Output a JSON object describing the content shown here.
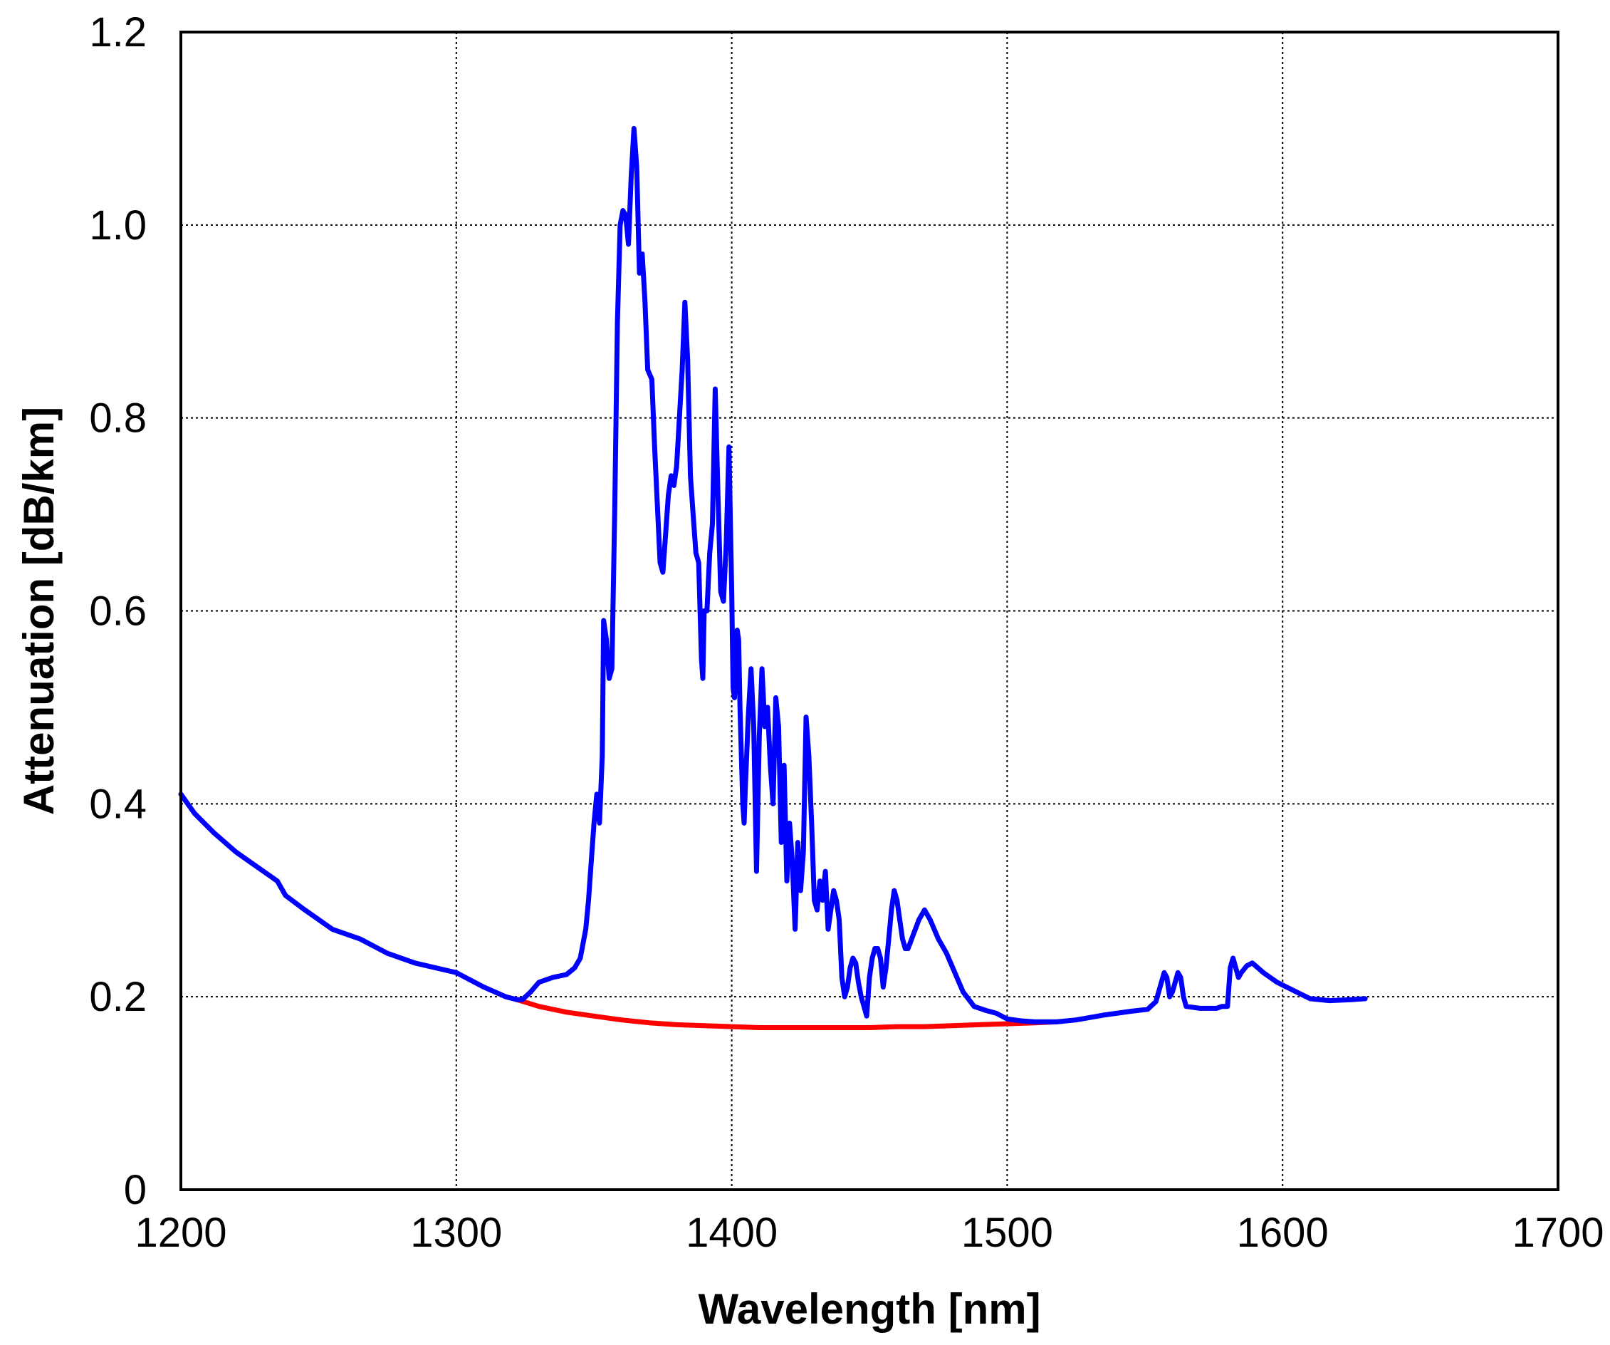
{
  "chart_data": {
    "type": "line",
    "xlabel": "Wavelength [nm]",
    "ylabel": "Attenuation [dB/km]",
    "xlim": [
      1200,
      1700
    ],
    "ylim": [
      0,
      1.2
    ],
    "x_ticks": [
      "1200",
      "1300",
      "1400",
      "1500",
      "1600",
      "1700"
    ],
    "y_ticks": [
      "0",
      "0.2",
      "0.4",
      "0.6",
      "0.8",
      "1.0",
      "1.2"
    ],
    "x_tick_values": [
      1200,
      1300,
      1400,
      1500,
      1600,
      1700
    ],
    "y_tick_values": [
      0,
      0.2,
      0.4,
      0.6,
      0.8,
      1.0,
      1.2
    ],
    "grid": true,
    "grid_style": "dotted",
    "series": [
      {
        "color": "#0000ff",
        "points": [
          [
            1200,
            0.41
          ],
          [
            1205,
            0.39
          ],
          [
            1212,
            0.37
          ],
          [
            1220,
            0.35
          ],
          [
            1230,
            0.33
          ],
          [
            1235,
            0.32
          ],
          [
            1238,
            0.305
          ],
          [
            1245,
            0.29
          ],
          [
            1255,
            0.27
          ],
          [
            1265,
            0.26
          ],
          [
            1275,
            0.245
          ],
          [
            1285,
            0.235
          ],
          [
            1300,
            0.225
          ],
          [
            1310,
            0.21
          ],
          [
            1318,
            0.2
          ],
          [
            1322,
            0.197
          ],
          [
            1324,
            0.197
          ],
          [
            1327,
            0.205
          ],
          [
            1330,
            0.215
          ],
          [
            1335,
            0.22
          ],
          [
            1340,
            0.223
          ],
          [
            1343,
            0.23
          ],
          [
            1345,
            0.24
          ],
          [
            1347,
            0.27
          ],
          [
            1348,
            0.3
          ],
          [
            1349,
            0.34
          ],
          [
            1350,
            0.38
          ],
          [
            1351,
            0.41
          ],
          [
            1352,
            0.38
          ],
          [
            1353,
            0.45
          ],
          [
            1353.5,
            0.59
          ],
          [
            1354.5,
            0.57
          ],
          [
            1355.5,
            0.53
          ],
          [
            1356.5,
            0.54
          ],
          [
            1357.5,
            0.7
          ],
          [
            1358.5,
            0.9
          ],
          [
            1359.5,
            1.0
          ],
          [
            1360.5,
            1.015
          ],
          [
            1361.5,
            1.01
          ],
          [
            1362.5,
            0.98
          ],
          [
            1363.5,
            1.05
          ],
          [
            1364.5,
            1.1
          ],
          [
            1365.5,
            1.06
          ],
          [
            1366.5,
            0.95
          ],
          [
            1367.5,
            0.97
          ],
          [
            1368.5,
            0.92
          ],
          [
            1369.5,
            0.85
          ],
          [
            1371,
            0.84
          ],
          [
            1372,
            0.77
          ],
          [
            1374,
            0.65
          ],
          [
            1375,
            0.64
          ],
          [
            1376,
            0.68
          ],
          [
            1377,
            0.72
          ],
          [
            1378,
            0.74
          ],
          [
            1379,
            0.73
          ],
          [
            1380,
            0.75
          ],
          [
            1381,
            0.8
          ],
          [
            1382,
            0.85
          ],
          [
            1383,
            0.92
          ],
          [
            1384,
            0.86
          ],
          [
            1385,
            0.74
          ],
          [
            1386,
            0.7
          ],
          [
            1387,
            0.66
          ],
          [
            1388,
            0.65
          ],
          [
            1389,
            0.55
          ],
          [
            1389.5,
            0.53
          ],
          [
            1390,
            0.6
          ],
          [
            1391,
            0.6
          ],
          [
            1392,
            0.66
          ],
          [
            1393,
            0.69
          ],
          [
            1394,
            0.83
          ],
          [
            1395,
            0.72
          ],
          [
            1396,
            0.62
          ],
          [
            1397,
            0.61
          ],
          [
            1398,
            0.67
          ],
          [
            1399,
            0.77
          ],
          [
            1400,
            0.62
          ],
          [
            1400.5,
            0.52
          ],
          [
            1401,
            0.51
          ],
          [
            1402,
            0.58
          ],
          [
            1402.5,
            0.57
          ],
          [
            1403,
            0.5
          ],
          [
            1404,
            0.4
          ],
          [
            1404.5,
            0.38
          ],
          [
            1405,
            0.42
          ],
          [
            1406,
            0.49
          ],
          [
            1407,
            0.54
          ],
          [
            1408,
            0.48
          ],
          [
            1409,
            0.33
          ],
          [
            1410,
            0.47
          ],
          [
            1411,
            0.54
          ],
          [
            1412,
            0.48
          ],
          [
            1413,
            0.5
          ],
          [
            1414,
            0.44
          ],
          [
            1415,
            0.4
          ],
          [
            1416,
            0.51
          ],
          [
            1417,
            0.48
          ],
          [
            1418,
            0.36
          ],
          [
            1419,
            0.44
          ],
          [
            1420,
            0.32
          ],
          [
            1421,
            0.38
          ],
          [
            1422,
            0.34
          ],
          [
            1423,
            0.27
          ],
          [
            1424,
            0.36
          ],
          [
            1425,
            0.31
          ],
          [
            1426,
            0.35
          ],
          [
            1427,
            0.49
          ],
          [
            1428,
            0.45
          ],
          [
            1429,
            0.38
          ],
          [
            1430,
            0.3
          ],
          [
            1431,
            0.29
          ],
          [
            1432,
            0.32
          ],
          [
            1433,
            0.3
          ],
          [
            1434,
            0.33
          ],
          [
            1435,
            0.27
          ],
          [
            1436,
            0.29
          ],
          [
            1437,
            0.31
          ],
          [
            1438,
            0.3
          ],
          [
            1439,
            0.28
          ],
          [
            1440,
            0.22
          ],
          [
            1441,
            0.2
          ],
          [
            1442,
            0.21
          ],
          [
            1443,
            0.23
          ],
          [
            1444,
            0.24
          ],
          [
            1445,
            0.235
          ],
          [
            1446,
            0.215
          ],
          [
            1447,
            0.2
          ],
          [
            1448,
            0.19
          ],
          [
            1449,
            0.18
          ],
          [
            1450,
            0.22
          ],
          [
            1451,
            0.24
          ],
          [
            1452,
            0.25
          ],
          [
            1453,
            0.25
          ],
          [
            1454,
            0.24
          ],
          [
            1455,
            0.21
          ],
          [
            1456,
            0.23
          ],
          [
            1457,
            0.26
          ],
          [
            1458,
            0.29
          ],
          [
            1459,
            0.31
          ],
          [
            1460,
            0.3
          ],
          [
            1461,
            0.28
          ],
          [
            1462,
            0.26
          ],
          [
            1463,
            0.25
          ],
          [
            1464,
            0.25
          ],
          [
            1466,
            0.265
          ],
          [
            1468,
            0.28
          ],
          [
            1469,
            0.285
          ],
          [
            1470,
            0.29
          ],
          [
            1472,
            0.28
          ],
          [
            1475,
            0.26
          ],
          [
            1478,
            0.245
          ],
          [
            1481,
            0.225
          ],
          [
            1484,
            0.205
          ],
          [
            1488,
            0.19
          ],
          [
            1492,
            0.186
          ],
          [
            1496,
            0.183
          ],
          [
            1500,
            0.177
          ],
          [
            1505,
            0.175
          ],
          [
            1510,
            0.174
          ],
          [
            1518,
            0.174
          ],
          [
            1525,
            0.176
          ],
          [
            1535,
            0.181
          ],
          [
            1545,
            0.185
          ],
          [
            1551,
            0.187
          ],
          [
            1554,
            0.195
          ],
          [
            1556,
            0.215
          ],
          [
            1557,
            0.225
          ],
          [
            1558,
            0.22
          ],
          [
            1559,
            0.2
          ],
          [
            1560,
            0.205
          ],
          [
            1561,
            0.215
          ],
          [
            1562,
            0.225
          ],
          [
            1563,
            0.22
          ],
          [
            1564,
            0.2
          ],
          [
            1565,
            0.19
          ],
          [
            1570,
            0.188
          ],
          [
            1576,
            0.188
          ],
          [
            1578,
            0.19
          ],
          [
            1580,
            0.19
          ],
          [
            1581,
            0.23
          ],
          [
            1582,
            0.24
          ],
          [
            1583,
            0.23
          ],
          [
            1584,
            0.22
          ],
          [
            1585,
            0.225
          ],
          [
            1587,
            0.232
          ],
          [
            1589,
            0.235
          ],
          [
            1593,
            0.225
          ],
          [
            1598,
            0.215
          ],
          [
            1605,
            0.205
          ],
          [
            1610,
            0.198
          ],
          [
            1617,
            0.196
          ],
          [
            1625,
            0.197
          ],
          [
            1630,
            0.198
          ]
        ]
      },
      {
        "color": "#ff0000",
        "points": [
          [
            1322,
            0.197
          ],
          [
            1330,
            0.19
          ],
          [
            1340,
            0.184
          ],
          [
            1350,
            0.18
          ],
          [
            1360,
            0.176
          ],
          [
            1370,
            0.173
          ],
          [
            1380,
            0.171
          ],
          [
            1390,
            0.17
          ],
          [
            1400,
            0.169
          ],
          [
            1410,
            0.168
          ],
          [
            1420,
            0.168
          ],
          [
            1430,
            0.168
          ],
          [
            1440,
            0.168
          ],
          [
            1450,
            0.168
          ],
          [
            1460,
            0.169
          ],
          [
            1470,
            0.169
          ],
          [
            1480,
            0.17
          ],
          [
            1490,
            0.171
          ],
          [
            1500,
            0.172
          ],
          [
            1510,
            0.173
          ],
          [
            1518,
            0.174
          ]
        ]
      }
    ]
  }
}
